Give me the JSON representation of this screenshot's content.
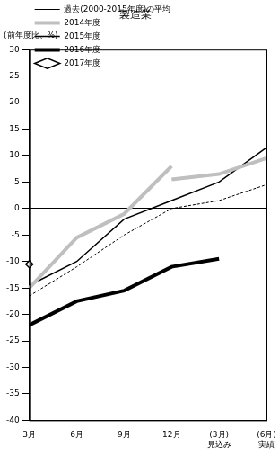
{
  "chart_data": {
    "type": "line",
    "title": "製造業",
    "y_label": "(前年度比、%)",
    "categories": [
      "3月",
      "6月",
      "9月",
      "12月",
      "(3月)\n見込み",
      "(6月)\n実績"
    ],
    "series": [
      {
        "name": "過去(2000-2015年度)の平均",
        "color": "#000000",
        "line_style": "dashed",
        "values": [
          -16.5,
          -11,
          -5,
          0,
          1.5,
          4.5
        ]
      },
      {
        "name": "2014年度",
        "color": "#bfbfbf",
        "line_style": "solid",
        "values": [
          -15,
          -5.5,
          -1,
          8,
          null,
          null
        ]
      },
      {
        "name": "2014年度",
        "color": "#bfbfbf",
        "line_style": "solid",
        "values": [
          null,
          null,
          null,
          5.5,
          6.5,
          9.5
        ]
      },
      {
        "name": "2015年度",
        "color": "#000000",
        "line_style": "solid",
        "values": [
          -14.5,
          -10,
          -2,
          1.5,
          5,
          11.5
        ]
      },
      {
        "name": "2016年度",
        "color": "#000000",
        "line_style": "bold",
        "values": [
          -22,
          -17.5,
          -15.5,
          -11,
          -9.5,
          null
        ]
      },
      {
        "name": "2017年度",
        "color": "#000000",
        "type": "scatter",
        "marker": "diamond",
        "values": [
          -10.5,
          null,
          null,
          null,
          null,
          null
        ]
      }
    ],
    "ylim": [
      -40,
      30
    ],
    "yticks": [
      -40,
      -35,
      -30,
      -25,
      -20,
      -15,
      -10,
      -5,
      0,
      5,
      10,
      15,
      20,
      25,
      30
    ],
    "grid": false,
    "legend": "top-left"
  }
}
